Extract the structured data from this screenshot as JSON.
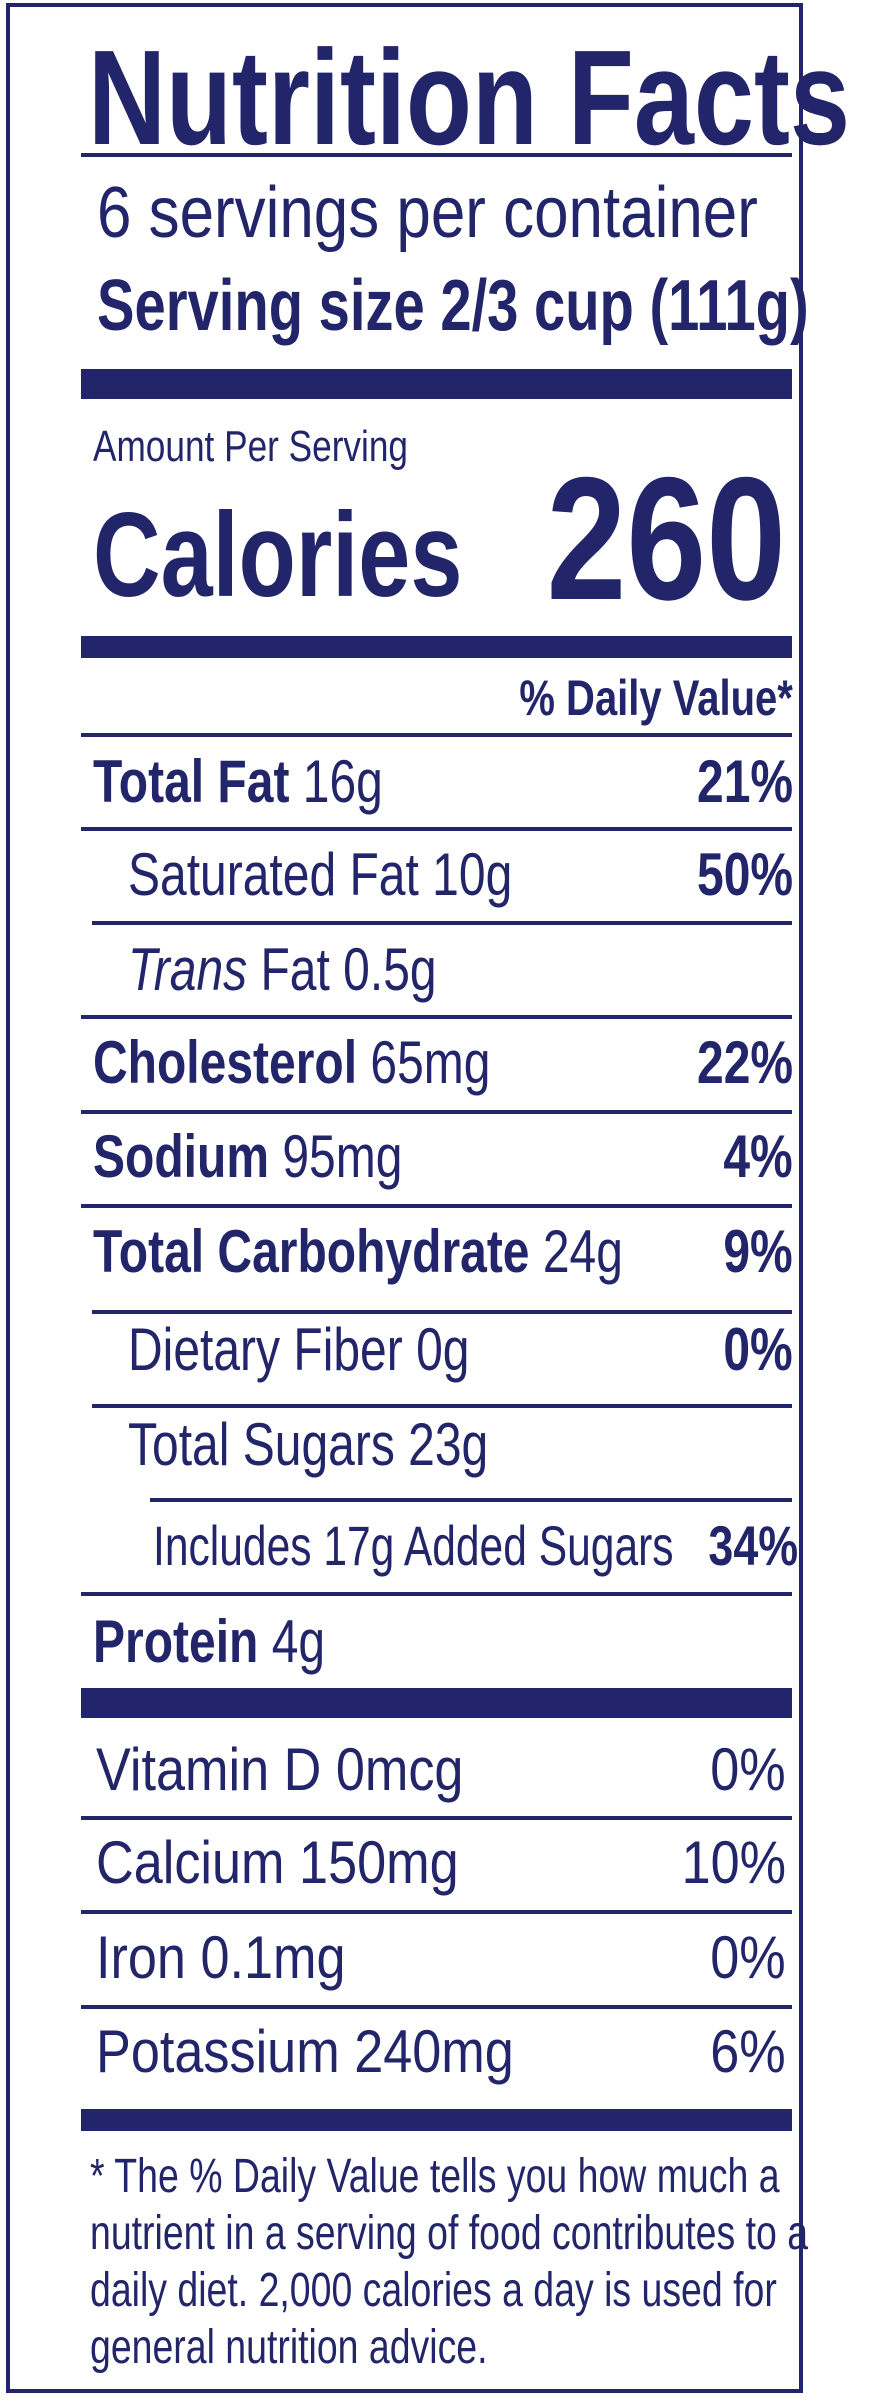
{
  "colors": {
    "ink": "#23256a",
    "background": "#ffffff"
  },
  "title": "Nutrition Facts",
  "servings_per_container": "6 servings per container",
  "serving_size": "Serving size 2/3 cup (111g)",
  "amount_per_serving": "Amount Per Serving",
  "calories": {
    "label": "Calories",
    "value": "260"
  },
  "daily_value_header": "% Daily Value*",
  "nutrients": {
    "total_fat": {
      "name": "Total Fat",
      "amount": "16g",
      "dv": "21%"
    },
    "saturated_fat": {
      "name": "Saturated Fat",
      "amount": "10g",
      "dv": "50%"
    },
    "trans_fat": {
      "name": "Trans",
      "name_suffix": "Fat",
      "amount": "0.5g"
    },
    "cholesterol": {
      "name": "Cholesterol",
      "amount": "65mg",
      "dv": "22%"
    },
    "sodium": {
      "name": "Sodium",
      "amount": "95mg",
      "dv": "4%"
    },
    "total_carbohydrate": {
      "name": "Total Carbohydrate",
      "amount": "24g",
      "dv": "9%"
    },
    "dietary_fiber": {
      "name": "Dietary Fiber",
      "amount": "0g",
      "dv": "0%"
    },
    "total_sugars": {
      "name": "Total Sugars",
      "amount": "23g"
    },
    "added_sugars": {
      "text": "Includes 17g Added Sugars",
      "dv": "34%"
    },
    "protein": {
      "name": "Protein",
      "amount": "4g"
    }
  },
  "vitamins": [
    {
      "name": "Vitamin D",
      "amount": "0mcg",
      "dv": "0%"
    },
    {
      "name": "Calcium",
      "amount": "150mg",
      "dv": "10%"
    },
    {
      "name": "Iron",
      "amount": "0.1mg",
      "dv": "0%"
    },
    {
      "name": "Potassium",
      "amount": "240mg",
      "dv": "6%"
    }
  ],
  "footnote": {
    "line1": "* The % Daily Value tells you how much a",
    "line2": "nutrient in a serving of food contributes to a",
    "line3": "daily diet. 2,000 calories a day is used for",
    "line4": "general nutrition advice."
  }
}
